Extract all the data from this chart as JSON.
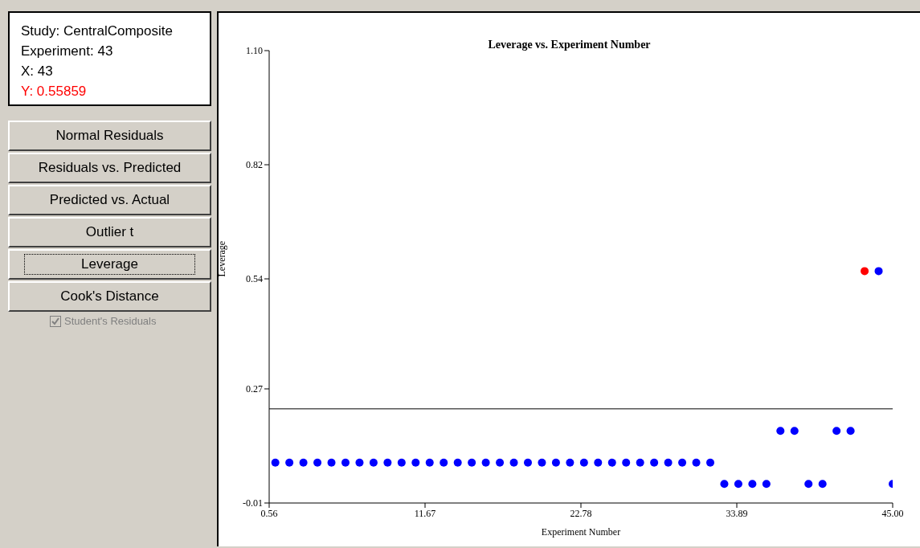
{
  "chart_data": {
    "type": "scatter",
    "title": "Leverage vs. Experiment Number",
    "xlabel": "Experiment Number",
    "ylabel": "Leverage",
    "xlim": [
      0.56,
      45
    ],
    "xticks": [
      0.56,
      11.67,
      22.78,
      33.89,
      {
        "value": 45,
        "label": "45.00"
      }
    ],
    "ylim": [
      -0.01,
      1.1
    ],
    "yticks": [
      -0.01,
      0.27,
      0.54,
      0.82,
      {
        "value": 1.1,
        "label": "1.10"
      }
    ],
    "grid": false,
    "legend": false,
    "marker": "circle",
    "ref_lines": [
      {
        "axis": "y",
        "value": 0.221,
        "color": "#000000"
      }
    ],
    "series": [
      {
        "color": "#0000ff",
        "x": [
          1,
          2,
          3,
          4,
          5,
          6,
          7,
          8,
          9,
          10,
          11,
          12,
          13,
          14,
          15,
          16,
          17,
          18,
          19,
          20,
          21,
          22,
          23,
          24,
          25,
          26,
          27,
          28,
          29,
          30,
          31,
          32,
          33,
          34,
          35,
          36,
          37,
          38,
          39,
          40,
          41,
          42,
          44,
          45
        ],
        "values": [
          0.089,
          0.089,
          0.089,
          0.089,
          0.089,
          0.089,
          0.089,
          0.089,
          0.089,
          0.089,
          0.089,
          0.089,
          0.089,
          0.089,
          0.089,
          0.089,
          0.089,
          0.089,
          0.089,
          0.089,
          0.089,
          0.089,
          0.089,
          0.089,
          0.089,
          0.089,
          0.089,
          0.089,
          0.089,
          0.089,
          0.089,
          0.089,
          0.037,
          0.037,
          0.037,
          0.037,
          0.167,
          0.167,
          0.037,
          0.037,
          0.167,
          0.167,
          0.559,
          0.037
        ]
      },
      {
        "color": "#ff0000",
        "x": [
          43
        ],
        "values": [
          0.559
        ]
      }
    ],
    "annotations": [
      "Study: CentralComposite",
      "Experiment: 43",
      "X: 43",
      "Y: 0.55859",
      "Normal Residuals",
      "Residuals vs. Predicted",
      "Predicted vs. Actual",
      "Outlier t",
      "Leverage",
      "Cook's Distance",
      "Student's Residuals"
    ]
  }
}
